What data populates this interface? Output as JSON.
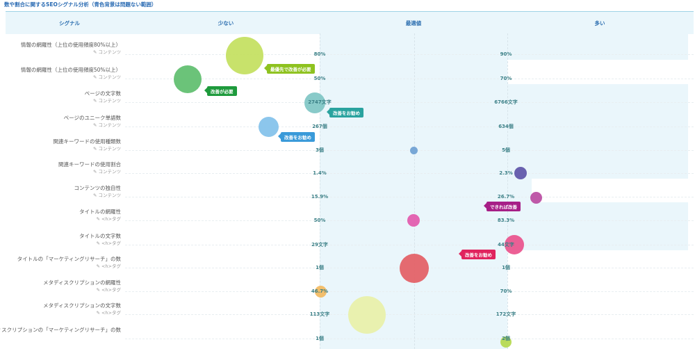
{
  "title": "数や割合に関するSEOシグナル分析（青色背景は問題ない範囲）",
  "header": {
    "signal": "シグナル",
    "low": "少ない",
    "optimal": "最適値",
    "high": "多い"
  },
  "rows": [
    {
      "name": "情報の網羅性（上位の使用頻度80%以上）",
      "cat": "コンテンツ",
      "v1": "80%",
      "v2": "90%",
      "bubble": {
        "color": "#c2df5b"
      },
      "tag": {
        "text": "最優先で改善が必要",
        "color": "#8ec21f"
      }
    },
    {
      "name": "情報の網羅性（上位の使用頻度50%以上）",
      "cat": "コンテンツ",
      "v1": "50%",
      "v2": "70%",
      "bubble": {
        "color": "#5bbd6a"
      },
      "tag": {
        "text": "改善が必要",
        "color": "#1e9a3c"
      }
    },
    {
      "name": "ページの文字数",
      "cat": "コンテンツ",
      "v1": "2747文字",
      "v2": "6766文字",
      "bubble": {
        "color": "#7cc4c3"
      },
      "tag": {
        "text": "改善をお勧め",
        "color": "#2aa39f"
      }
    },
    {
      "name": "ページのユニーク単語数",
      "cat": "コンテンツ",
      "v1": "267個",
      "v2": "634個",
      "bubble": {
        "color": "#7fc0ea"
      },
      "tag": {
        "text": "改善をお勧め",
        "color": "#3a9ad9"
      }
    },
    {
      "name": "関連キーワードの使用種類数",
      "cat": "コンテンツ",
      "v1": "3個",
      "v2": "5個",
      "bubble": {
        "color": "#6b9fd1"
      }
    },
    {
      "name": "関連キーワードの使用割合",
      "cat": "コンテンツ",
      "v1": "1.4%",
      "v2": "2.3%",
      "bubble": {
        "color": "#5b51a6"
      }
    },
    {
      "name": "コンテンツの独自性",
      "cat": "コンテンツ",
      "v1": "15.9%",
      "v2": "26.7%",
      "bubble": {
        "color": "#b8479f"
      },
      "tag": {
        "text": "できれば改善",
        "color": "#a61f87"
      }
    },
    {
      "name": "タイトルの網羅性",
      "cat": "<h>タグ",
      "v1": "50%",
      "v2": "83.3%",
      "bubble": {
        "color": "#e257ab"
      }
    },
    {
      "name": "タイトルの文字数",
      "cat": "<h>タグ",
      "v1": "29文字",
      "v2": "44文字",
      "bubble": {
        "color": "#ea4f8a"
      },
      "tag": {
        "text": "改善をお勧め",
        "color": "#e0245e"
      }
    },
    {
      "name": "タイトルの「マーケティングリサーチ」の数",
      "cat": "<h>タグ",
      "v1": "1個",
      "v2": "1個",
      "bubble": {
        "color": "#e35b60"
      }
    },
    {
      "name": "メタディスクリプションの網羅性",
      "cat": "<h>タグ",
      "v1": "46.7%",
      "v2": "70%",
      "bubble": {
        "color": "#f3b85c"
      }
    },
    {
      "name": "メタディスクリプションの文字数",
      "cat": "<h>タグ",
      "v1": "113文字",
      "v2": "172文字",
      "bubble": {
        "color": "#e9f1a6"
      }
    },
    {
      "name": "メタディスクリプションの「マーケティングリサーチ」の数",
      "cat": "",
      "v1": "1個",
      "v2": "2個",
      "bubble": {
        "color": "#b4d84a"
      }
    }
  ]
}
